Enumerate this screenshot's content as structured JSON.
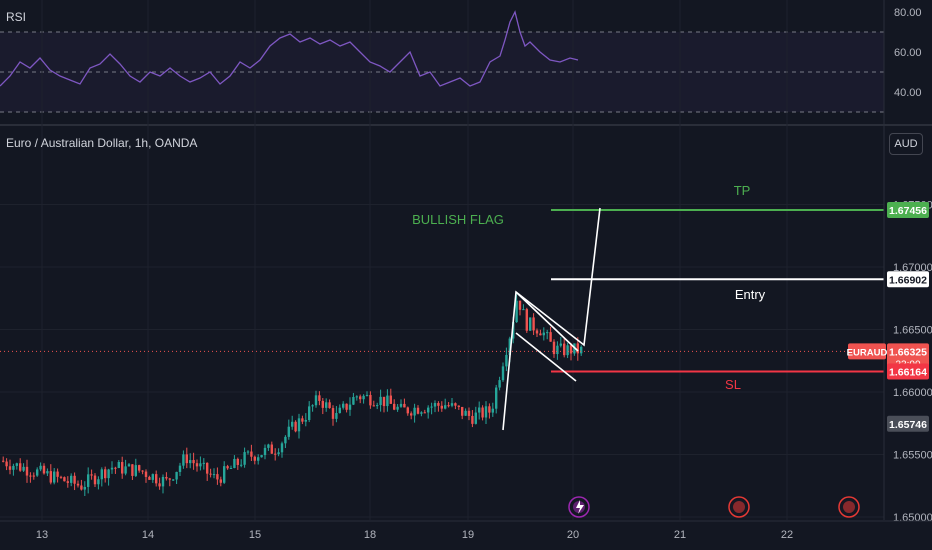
{
  "header": {
    "symbol_title": "Euro / Australian Dollar, 1h, OANDA",
    "rsi_label": "RSI",
    "currency_button": "AUD"
  },
  "colors": {
    "background": "#131722",
    "bull_candle": "#26a69a",
    "bear_candle": "#ef5350",
    "rsi_line": "#7e57c2",
    "tp_line": "#4caf50",
    "sl_line": "#f23645",
    "entry_line": "#ffffff",
    "annotation_green": "#4caf50"
  },
  "annotations": {
    "flag_label": "BULLISH FLAG",
    "tp_label": "TP",
    "entry_label": "Entry",
    "sl_label": "SL"
  },
  "price_scale": {
    "ticks": [
      "1.67000",
      "1.66500",
      "1.66000",
      "1.65500",
      "1.65000"
    ],
    "tp_price": "1.67456",
    "entry_price": "1.66902",
    "current_symbol": "EURAUD",
    "current_price": "1.66325",
    "countdown": "33:00",
    "sl_price": "1.66164",
    "marker_price": "1.65746",
    "partial_top_tick": "1.67500"
  },
  "rsi_scale": {
    "ticks": [
      "80.00",
      "60.00",
      "40.00"
    ]
  },
  "time_axis": {
    "labels": [
      "13",
      "14",
      "15",
      "18",
      "19",
      "20",
      "21",
      "22"
    ]
  },
  "chart_data": [
    {
      "type": "line",
      "title": "RSI",
      "y_ticks": [
        40,
        60,
        80
      ],
      "bands": [
        70,
        50,
        30
      ],
      "x": [
        0,
        10,
        20,
        30,
        40,
        50,
        60,
        70,
        80,
        90,
        100,
        110,
        120,
        130,
        140,
        150,
        160,
        170,
        180,
        190,
        200,
        210,
        220,
        230,
        240,
        250,
        260,
        270,
        280,
        290,
        300,
        310,
        320,
        330,
        340,
        350,
        360,
        370,
        380,
        390,
        400,
        410,
        420,
        430,
        440,
        450,
        460,
        470,
        480,
        490,
        500,
        505,
        510,
        515,
        520,
        525,
        530,
        540,
        550,
        560,
        570,
        578
      ],
      "values": [
        43,
        48,
        55,
        52,
        57,
        51,
        48,
        46,
        44,
        52,
        54,
        59,
        54,
        48,
        45,
        50,
        48,
        52,
        48,
        45,
        47,
        50,
        44,
        48,
        55,
        52,
        56,
        63,
        67,
        69,
        65,
        67,
        64,
        66,
        63,
        65,
        60,
        55,
        53,
        50,
        55,
        60,
        48,
        50,
        43,
        45,
        47,
        43,
        45,
        55,
        58,
        66,
        75,
        80,
        70,
        63,
        65,
        60,
        56,
        55,
        57,
        56
      ]
    },
    {
      "type": "candlestick",
      "title": "Euro / Australian Dollar, 1h, OANDA",
      "ylim": [
        1.65,
        1.67756
      ],
      "x_tick_labels": [
        "13",
        "14",
        "15",
        "18",
        "19",
        "20",
        "21",
        "22"
      ],
      "pivots": [
        [
          0,
          1.6545
        ],
        [
          40,
          1.6535
        ],
        [
          80,
          1.6525
        ],
        [
          110,
          1.654
        ],
        [
          140,
          1.6537
        ],
        [
          165,
          1.6528
        ],
        [
          185,
          1.6548
        ],
        [
          215,
          1.653
        ],
        [
          245,
          1.6548
        ],
        [
          275,
          1.6555
        ],
        [
          290,
          1.657
        ],
        [
          305,
          1.6582
        ],
        [
          318,
          1.6595
        ],
        [
          335,
          1.658
        ],
        [
          355,
          1.6597
        ],
        [
          380,
          1.6594
        ],
        [
          400,
          1.6585
        ],
        [
          420,
          1.6588
        ],
        [
          445,
          1.659
        ],
        [
          470,
          1.658
        ],
        [
          490,
          1.6585
        ],
        [
          500,
          1.662
        ],
        [
          510,
          1.665
        ],
        [
          516,
          1.6677
        ],
        [
          525,
          1.6655
        ],
        [
          540,
          1.665
        ],
        [
          552,
          1.6635
        ],
        [
          560,
          1.6633
        ],
        [
          568,
          1.6634
        ],
        [
          578,
          1.6633
        ]
      ],
      "last_price": 1.66325,
      "levels": {
        "tp": 1.67456,
        "entry": 1.66902,
        "sl": 1.66164
      },
      "projection": [
        [
          "19",
          1.6572
        ],
        [
          "19",
          1.6683
        ],
        [
          "20",
          1.6633
        ],
        [
          "20",
          1.6746
        ]
      ]
    }
  ]
}
